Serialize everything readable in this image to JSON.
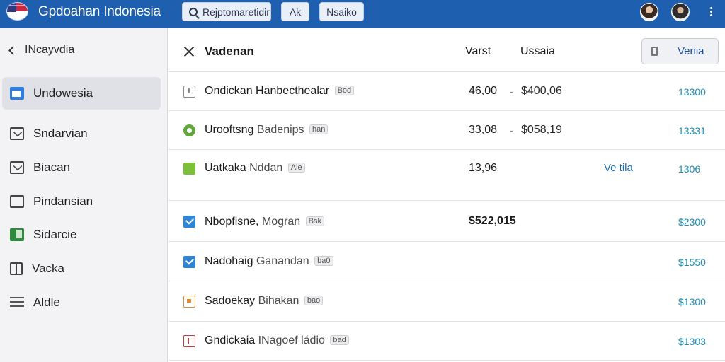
{
  "header": {
    "app_title": "Gpdoahan Indonesia",
    "search_label": "Rejptomaretidir",
    "button_ak": "Ak",
    "button_ns": "Nsaiko",
    "brand_color": "#1f5fb0",
    "icons": [
      "flag-icon",
      "search-icon",
      "avatar",
      "more-vertical-icon"
    ]
  },
  "sidebar": {
    "back_label": "INcayvdia",
    "items": [
      {
        "label": "Undowesia",
        "icon": "calendar-icon",
        "active": true
      },
      {
        "label": "Sndarvian",
        "icon": "mail-icon",
        "active": false
      },
      {
        "label": "Biacan",
        "icon": "envelope-icon",
        "active": false
      },
      {
        "label": "Pindansian",
        "icon": "box-icon",
        "active": false
      },
      {
        "label": "Sidarcie",
        "icon": "sheet-icon",
        "active": false
      },
      {
        "label": "Vacka",
        "icon": "document-icon",
        "active": false
      },
      {
        "label": "Aldle",
        "icon": "menu-lines-icon",
        "active": false
      }
    ]
  },
  "main": {
    "title": "Vadenan",
    "col_header_1": "Varst",
    "col_header_2": "Ussaia",
    "action_button": "Veriia",
    "rows": [
      {
        "name": "Ondickan Hanbecthealar",
        "sub": "",
        "tag": "Bod",
        "value1": "46,00",
        "dash": "-",
        "value2": "$400,06",
        "extra": "",
        "amount": "13300",
        "icon": "document-icon"
      },
      {
        "name": "Urooftsng",
        "sub": "Badenips",
        "tag": "han",
        "value1": "33,08",
        "dash": "-",
        "value2": "$058,19",
        "extra": "",
        "amount": "13331",
        "icon": "gear-icon"
      },
      {
        "name": "Uatkaka",
        "sub": "Nddan",
        "tag": "Ale",
        "value1": "13,96",
        "dash": "",
        "value2": "",
        "extra": "Ve tila",
        "amount": "1306",
        "icon": "green-square-icon"
      },
      {
        "name": "Nbopfisne,",
        "sub": "Mogran",
        "tag": "Bsk",
        "value1": "$522,015",
        "dash": "",
        "value2": "",
        "extra": "",
        "amount": "$2300",
        "icon": "check-icon"
      },
      {
        "name": "Nadohaig",
        "sub": "Ganandan",
        "tag": "ba0",
        "value1": "",
        "dash": "",
        "value2": "",
        "extra": "",
        "amount": "$1550",
        "icon": "check-icon"
      },
      {
        "name": "Sadoekay",
        "sub": "Bihakan",
        "tag": "bao",
        "value1": "",
        "dash": "",
        "value2": "",
        "extra": "",
        "amount": "$1300",
        "icon": "image-icon"
      },
      {
        "name": "Gndickaia",
        "sub": "INagoef ládio",
        "tag": "bad",
        "value1": "",
        "dash": "",
        "value2": "",
        "extra": "",
        "amount": "$1303",
        "icon": "document-red-icon"
      }
    ]
  }
}
